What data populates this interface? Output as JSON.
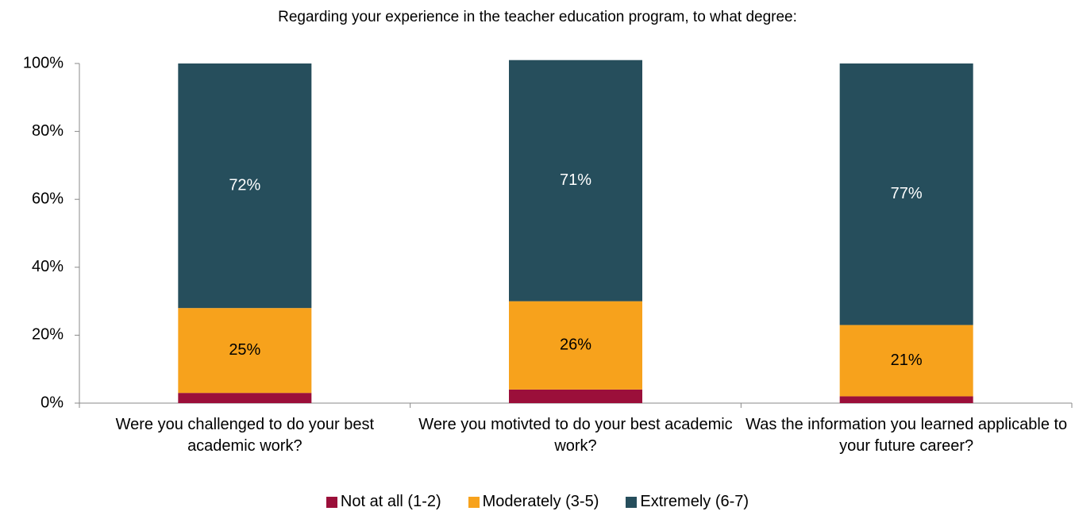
{
  "chart_data": {
    "type": "stacked_bar",
    "title": "Regarding your experience in the teacher education program, to what degree:",
    "categories": [
      "Were you challenged to do your best academic work?",
      "Were you motivted to do your best academic work?",
      "Was the information you learned applicable to your future career?"
    ],
    "series": [
      {
        "name": "Not at all (1-2)",
        "color": "#9b0f3a",
        "values": [
          3,
          4,
          2
        ]
      },
      {
        "name": "Moderately (3-5)",
        "color": "#f7a21c",
        "values": [
          25,
          26,
          21
        ],
        "value_labels": [
          "25%",
          "26%",
          "21%"
        ]
      },
      {
        "name": "Extremely (6-7)",
        "color": "#264e5c",
        "values": [
          72,
          71,
          77
        ],
        "value_labels": [
          "72%",
          "71%",
          "77%"
        ]
      }
    ],
    "ylim": [
      0,
      100
    ],
    "yticks": [
      {
        "value": 0,
        "label": "0%"
      },
      {
        "value": 20,
        "label": "20%"
      },
      {
        "value": 40,
        "label": "40%"
      },
      {
        "value": 60,
        "label": "60%"
      },
      {
        "value": 80,
        "label": "80%"
      },
      {
        "value": 100,
        "label": "100%"
      }
    ],
    "legend": "bottom"
  }
}
